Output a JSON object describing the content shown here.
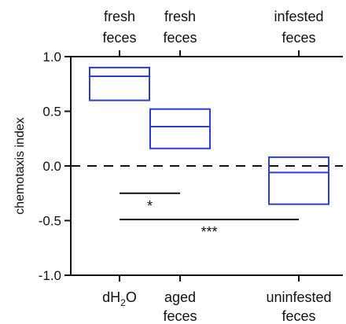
{
  "chart_data": {
    "type": "box",
    "ylabel": "chemotaxis index",
    "ylim": [
      -1.0,
      1.0
    ],
    "yticks": [
      {
        "value": 1.0,
        "label": "1.0"
      },
      {
        "value": 0.5,
        "label": "0.5"
      },
      {
        "value": 0.0,
        "label": "0.0"
      },
      {
        "value": -0.5,
        "label": "-0.5"
      },
      {
        "value": -1.0,
        "label": "-1.0"
      }
    ],
    "reference_line": 0.0,
    "box_color": "#2a3fd6",
    "categories": [
      {
        "top": [
          "fresh",
          "feces"
        ],
        "bottom": [
          "dH",
          "2",
          "O"
        ],
        "q1": 0.6,
        "median": 0.82,
        "q3": 0.9
      },
      {
        "top": [
          "fresh",
          "feces"
        ],
        "bottom": [
          "aged",
          "feces"
        ],
        "q1": 0.16,
        "median": 0.36,
        "q3": 0.52
      },
      {
        "top": [
          "infested",
          "feces"
        ],
        "bottom": [
          "uninfested",
          "feces"
        ],
        "q1": -0.35,
        "median": -0.06,
        "q3": 0.08
      }
    ],
    "significance": [
      {
        "from": 0,
        "to": 1,
        "y": -0.25,
        "label": "*"
      },
      {
        "from": 0,
        "to": 2,
        "y": -0.49,
        "label": "***"
      }
    ]
  }
}
